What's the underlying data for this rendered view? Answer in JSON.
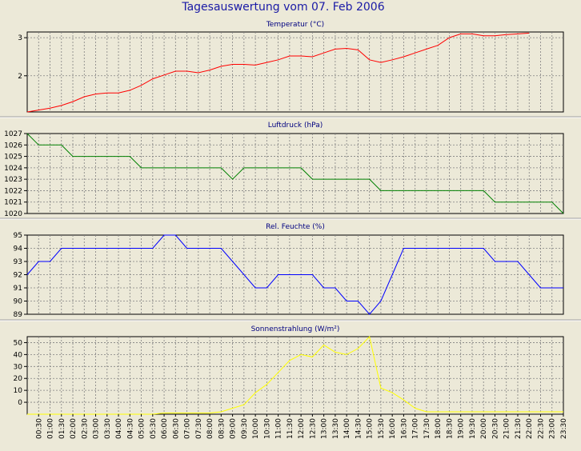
{
  "title": "Tagesauswertung vom 07. Feb 2006",
  "colors": {
    "background": "#ECE9D8",
    "plot_background": "#ECE9D8",
    "grid": "#808080",
    "title": "#1a1aa6",
    "panel_title": "#000080"
  },
  "time_labels": [
    "00:30",
    "01:00",
    "01:30",
    "02:00",
    "02:30",
    "03:00",
    "03:30",
    "04:00",
    "04:30",
    "05:00",
    "05:30",
    "06:00",
    "06:30",
    "07:00",
    "07:30",
    "08:00",
    "08:30",
    "09:00",
    "09:30",
    "10:00",
    "10:30",
    "11:00",
    "11:30",
    "12:00",
    "12:30",
    "13:00",
    "13:30",
    "14:00",
    "14:30",
    "15:00",
    "15:30",
    "16:00",
    "16:30",
    "17:00",
    "17:30",
    "18:00",
    "18:30",
    "19:00",
    "19:30",
    "20:00",
    "20:30",
    "21:00",
    "21:30",
    "22:00",
    "22:30",
    "23:00",
    "23:30"
  ],
  "chart_data": [
    {
      "type": "line",
      "title": "Temperatur (°C)",
      "color": "#FF0000",
      "ylim": [
        1.05,
        3.15
      ],
      "yticks": [
        "2",
        "3"
      ],
      "ytick_values": [
        2,
        3
      ],
      "x": [
        "00:00",
        "00:30",
        "01:00",
        "01:30",
        "02:00",
        "02:30",
        "03:00",
        "03:30",
        "04:00",
        "04:30",
        "05:00",
        "05:30",
        "06:00",
        "06:30",
        "07:00",
        "07:30",
        "08:00",
        "08:30",
        "09:00",
        "09:30",
        "10:00",
        "10:30",
        "11:00",
        "11:30",
        "12:00",
        "12:30",
        "13:00",
        "13:30",
        "14:00",
        "14:30",
        "15:00",
        "15:30",
        "16:00",
        "16:30",
        "17:00",
        "17:30",
        "18:00",
        "18:30",
        "19:00",
        "19:30",
        "20:00",
        "20:30",
        "21:00",
        "21:30",
        "22:00"
      ],
      "values": [
        1.05,
        1.1,
        1.15,
        1.22,
        1.32,
        1.45,
        1.52,
        1.55,
        1.55,
        1.62,
        1.75,
        1.92,
        2.02,
        2.12,
        2.12,
        2.08,
        2.15,
        2.25,
        2.3,
        2.3,
        2.28,
        2.35,
        2.42,
        2.52,
        2.52,
        2.5,
        2.6,
        2.7,
        2.72,
        2.68,
        2.42,
        2.35,
        2.42,
        2.5,
        2.6,
        2.7,
        2.8,
        3.0,
        3.1,
        3.1,
        3.05,
        3.05,
        3.08,
        3.1,
        3.12
      ]
    },
    {
      "type": "line",
      "title": "Luftdruck (hPa)",
      "color": "#008000",
      "ylim": [
        1020,
        1027
      ],
      "yticks": [
        "1020",
        "1021",
        "1022",
        "1023",
        "1024",
        "1025",
        "1026",
        "1027"
      ],
      "ytick_values": [
        1020,
        1021,
        1022,
        1023,
        1024,
        1025,
        1026,
        1027
      ],
      "x": [
        "00:00",
        "00:30",
        "01:00",
        "01:30",
        "02:00",
        "02:30",
        "03:00",
        "03:30",
        "04:00",
        "04:30",
        "05:00",
        "05:30",
        "06:00",
        "06:30",
        "07:00",
        "07:30",
        "08:00",
        "08:30",
        "09:00",
        "09:30",
        "10:00",
        "10:30",
        "11:00",
        "11:30",
        "12:00",
        "12:30",
        "13:00",
        "13:30",
        "14:00",
        "14:30",
        "15:00",
        "15:30",
        "16:00",
        "16:30",
        "17:00",
        "17:30",
        "18:00",
        "18:30",
        "19:00",
        "19:30",
        "20:00",
        "20:30",
        "21:00",
        "21:30",
        "22:00",
        "22:30",
        "23:00",
        "23:30"
      ],
      "values": [
        1027,
        1026,
        1026,
        1026,
        1025,
        1025,
        1025,
        1025,
        1025,
        1025,
        1024,
        1024,
        1024,
        1024,
        1024,
        1024,
        1024,
        1024,
        1023,
        1024,
        1024,
        1024,
        1024,
        1024,
        1024,
        1023,
        1023,
        1023,
        1023,
        1023,
        1023,
        1022,
        1022,
        1022,
        1022,
        1022,
        1022,
        1022,
        1022,
        1022,
        1022,
        1021,
        1021,
        1021,
        1021,
        1021,
        1021,
        1020
      ]
    },
    {
      "type": "line",
      "title": "Rel. Feuchte (%)",
      "color": "#0000FF",
      "ylim": [
        89,
        95
      ],
      "yticks": [
        "89",
        "90",
        "91",
        "92",
        "93",
        "94",
        "95"
      ],
      "ytick_values": [
        89,
        90,
        91,
        92,
        93,
        94,
        95
      ],
      "x": [
        "00:00",
        "00:30",
        "01:00",
        "01:30",
        "02:00",
        "02:30",
        "03:00",
        "03:30",
        "04:00",
        "04:30",
        "05:00",
        "05:30",
        "06:00",
        "06:30",
        "07:00",
        "07:30",
        "08:00",
        "08:30",
        "09:00",
        "09:30",
        "10:00",
        "10:30",
        "11:00",
        "11:30",
        "12:00",
        "12:30",
        "13:00",
        "13:30",
        "14:00",
        "14:30",
        "15:00",
        "15:30",
        "16:00",
        "16:30",
        "17:00",
        "17:30",
        "18:00",
        "18:30",
        "19:00",
        "19:30",
        "20:00",
        "20:30",
        "21:00",
        "21:30",
        "22:00",
        "22:30",
        "23:00",
        "23:30"
      ],
      "values": [
        92,
        93,
        93,
        94,
        94,
        94,
        94,
        94,
        94,
        94,
        94,
        94,
        95,
        95,
        94,
        94,
        94,
        94,
        93,
        92,
        91,
        91,
        92,
        92,
        92,
        92,
        91,
        91,
        90,
        90,
        89,
        90,
        92,
        94,
        94,
        94,
        94,
        94,
        94,
        94,
        94,
        93,
        93,
        93,
        92,
        91,
        91,
        91
      ]
    },
    {
      "type": "line",
      "title": "Sonnenstrahlung (W/m²)",
      "color": "#FFFF00",
      "ylim": [
        -10,
        55
      ],
      "yticks": [
        "0",
        "10",
        "20",
        "30",
        "40",
        "50"
      ],
      "ytick_values": [
        0,
        10,
        20,
        30,
        40,
        50
      ],
      "x": [
        "00:00",
        "00:30",
        "01:00",
        "01:30",
        "02:00",
        "02:30",
        "03:00",
        "03:30",
        "04:00",
        "04:30",
        "05:00",
        "05:30",
        "06:00",
        "06:30",
        "07:00",
        "07:30",
        "08:00",
        "08:30",
        "09:00",
        "09:30",
        "10:00",
        "10:30",
        "11:00",
        "11:30",
        "12:00",
        "12:30",
        "13:00",
        "13:30",
        "14:00",
        "14:30",
        "15:00",
        "15:30",
        "16:00",
        "16:30",
        "17:00",
        "17:30",
        "18:00",
        "18:30",
        "19:00",
        "19:30",
        "20:00",
        "20:30",
        "21:00",
        "21:30",
        "22:00",
        "22:30",
        "23:00",
        "23:30"
      ],
      "values": [
        -10,
        -10,
        -10,
        -10,
        -10,
        -10,
        -10,
        -10,
        -10,
        -10,
        -10,
        -10,
        -9,
        -9,
        -9,
        -9,
        -9,
        -8,
        -5,
        -2,
        8,
        15,
        25,
        35,
        40,
        38,
        48,
        42,
        40,
        45,
        55,
        12,
        8,
        2,
        -5,
        -8,
        -8,
        -8,
        -8,
        -8,
        -8,
        -8,
        -8,
        -8,
        -8,
        -8,
        -8,
        -8
      ]
    }
  ]
}
